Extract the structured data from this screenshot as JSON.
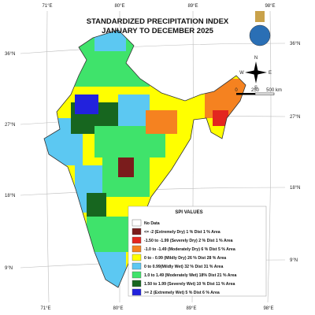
{
  "header": {
    "title": "STANDARDIZED PRECIPITATION INDEX",
    "subtitle": "JANUARY TO DECEMBER 2025"
  },
  "longitude_labels_top": [
    "71°E",
    "80°E",
    "89°E",
    "98°E"
  ],
  "longitude_labels_bottom": [
    "71°E",
    "80°E",
    "89°E",
    "98°E"
  ],
  "latitude_labels_left": [
    "36°N",
    "27°N",
    "18°N",
    "9°N"
  ],
  "latitude_labels_right": [
    "36°N",
    "27°N",
    "18°N",
    "9°N"
  ],
  "compass": {
    "north": "N",
    "west": "W",
    "east": "E",
    "south": "S"
  },
  "scale_bar": [
    "0",
    "250",
    "500 km"
  ],
  "legend": {
    "title": "SPI VALUES",
    "items": [
      {
        "label": "No Data",
        "color": "#ffffff"
      },
      {
        "label": "<= -2 (Extremely Dry) 1 % Dist 1 % Area",
        "color": "#7a1c1c"
      },
      {
        "label": "-1.50 to -1.99 (Severely Dry) 2 % Dist 1 % Area",
        "color": "#e3261f"
      },
      {
        "label": "-1.0 to -1.49 (Moderately Dry) 6 % Dist 5 % Area",
        "color": "#f58220"
      },
      {
        "label": "0 to - 0.99 (Mildly Dry) 26 % Dist 28 % Area",
        "color": "#ffff00"
      },
      {
        "label": "0 to 0.99(Mildly Wet) 32 % Dist 31 % Area",
        "color": "#5cc8f2"
      },
      {
        "label": "1.0 to 1.49 (Moderately Wet) 18% Dist 21 % Area",
        "color": "#3fe36b"
      },
      {
        "label": "1.50 to 1.99 (Severely Wet) 10 % Dist 11 % Area",
        "color": "#17661f"
      },
      {
        "label": ">= 2 (Extremely Wet) 5 % Dist 6 % Area",
        "color": "#2222dd"
      }
    ]
  }
}
